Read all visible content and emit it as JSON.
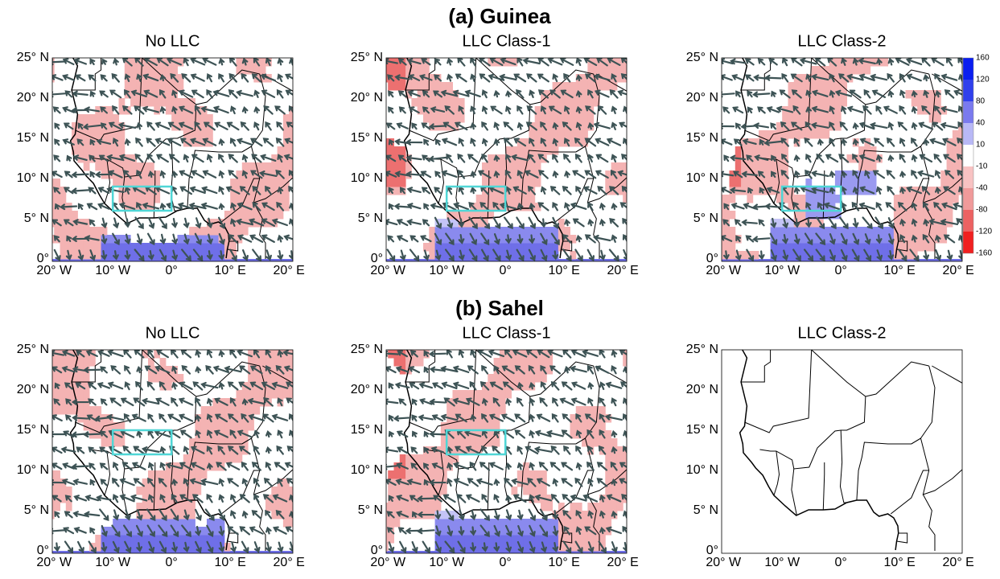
{
  "titles": [
    "(a) Guinea",
    "(b) Sahel"
  ],
  "panels": [
    {
      "title": "No LLC"
    },
    {
      "title": "LLC Class-1"
    },
    {
      "title": "LLC Class-2"
    },
    {
      "title": "No LLC"
    },
    {
      "title": "LLC Class-1"
    },
    {
      "title": "LLC Class-2"
    }
  ],
  "lat_labels": [
    "25° N",
    "20° N",
    "15° N",
    "10° N",
    "5° N",
    "0°"
  ],
  "lon_labels": [
    "20° W",
    "10° W",
    "0°",
    "10° E",
    "20° E"
  ],
  "colorbar": {
    "labels": [
      "160",
      "120",
      "80",
      "40",
      "10",
      "-10",
      "-40",
      "-80",
      "-120",
      "-160"
    ]
  }
}
